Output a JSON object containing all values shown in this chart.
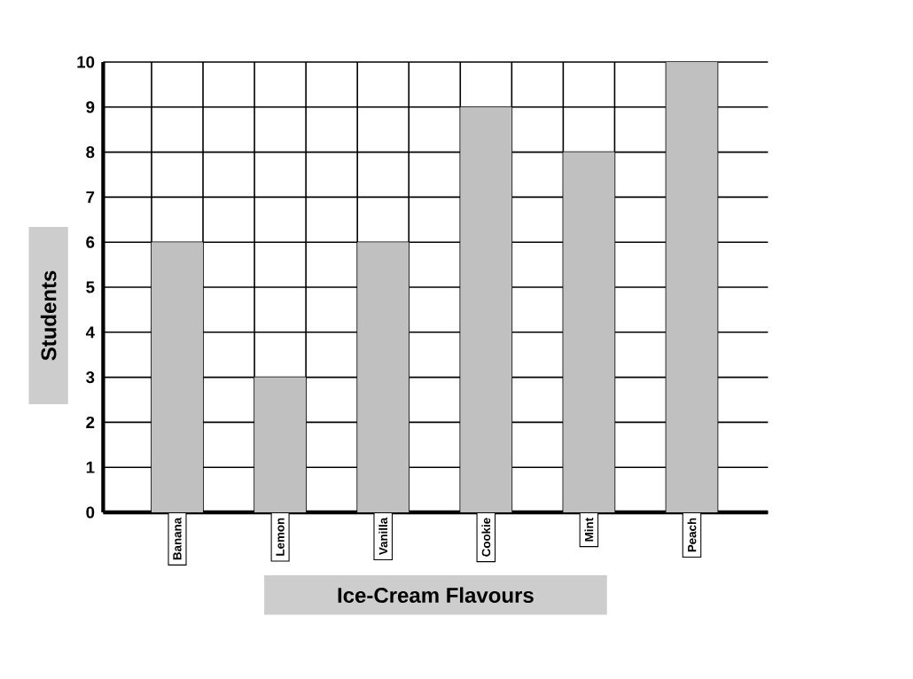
{
  "chart_data": {
    "type": "bar",
    "xlabel": "Ice-Cream Flavours",
    "ylabel": "Students",
    "categories": [
      "Banana",
      "Lemon",
      "Vanilla",
      "Cookie",
      "Mint",
      "Peach"
    ],
    "values": [
      6,
      3,
      6,
      9,
      8,
      10
    ],
    "color": "#c0c0c0",
    "ylim": [
      0,
      10
    ],
    "yticks": [
      0,
      1,
      2,
      3,
      4,
      5,
      6,
      7,
      8,
      9,
      10
    ],
    "grid": true
  }
}
